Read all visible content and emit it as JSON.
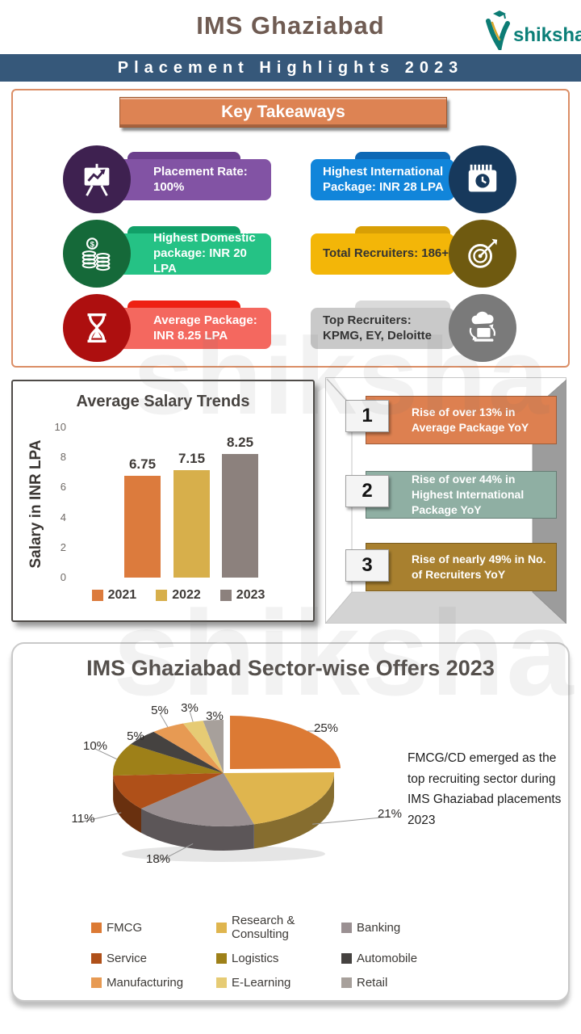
{
  "header": {
    "title": "IMS Ghaziabad",
    "brand": "shiksha",
    "banner": "Placement Highlights 2023"
  },
  "watermark": "shiksha",
  "key_takeaways": {
    "title": "Key Takeaways",
    "badges": [
      {
        "label": "Placement Rate: 100%",
        "icon": "presentation-chart-icon",
        "ribbon_color": "#8253A4",
        "tab_color": "#6B3F8C",
        "circle_color": "#3E2150",
        "text_color": "#FFFFFF"
      },
      {
        "label": "Highest International Package: INR 28 LPA",
        "icon": "calendar-clock-icon",
        "ribbon_color": "#1185DA",
        "tab_color": "#0D68B5",
        "circle_color": "#17395C",
        "text_color": "#FFFFFF"
      },
      {
        "label": "Highest Domestic package: INR 20 LPA",
        "icon": "coins-icon",
        "ribbon_color": "#25C285",
        "tab_color": "#11A068",
        "circle_color": "#156939",
        "text_color": "#FFFFFF"
      },
      {
        "label": "Total Recruiters: 186+",
        "icon": "target-icon",
        "ribbon_color": "#F3B608",
        "tab_color": "#D89F05",
        "circle_color": "#6F5A10",
        "text_color": "#333333"
      },
      {
        "label": "Average Package: INR 8.25 LPA",
        "icon": "hourglass-icon",
        "ribbon_color": "#F4685F",
        "tab_color": "#EE2113",
        "circle_color": "#AD0F0F",
        "text_color": "#FFFFFF"
      },
      {
        "label": "Top Recruiters: KPMG, EY, Deloitte",
        "icon": "cloud-sync-icon",
        "ribbon_color": "#C9C9C9",
        "tab_color": "#DADADA",
        "circle_color": "#7A7A7A",
        "text_color": "#333333"
      }
    ]
  },
  "insights": [
    {
      "number": "1",
      "text": "Rise of over 13% in Average Package YoY",
      "color": "#DD8050"
    },
    {
      "number": "2",
      "text": "Rise of over 44% in Highest International Package YoY",
      "color": "#8FAFA3"
    },
    {
      "number": "3",
      "text": "Rise of nearly 49% in No. of Recruiters YoY",
      "color": "#A8802F"
    }
  ],
  "chart_data": [
    {
      "type": "bar",
      "title": "Average Salary Trends",
      "xlabel": "",
      "ylabel": "Salary in INR LPA",
      "categories": [
        "2021",
        "2022",
        "2023"
      ],
      "values": [
        6.75,
        7.15,
        8.25
      ],
      "colors": [
        "#DC7B3D",
        "#D7AF4B",
        "#8C817D"
      ],
      "ylim": [
        0,
        10
      ],
      "yticks": [
        0,
        2,
        4,
        6,
        8,
        10
      ],
      "grid": false,
      "legend_position": "bottom"
    },
    {
      "type": "pie",
      "title": "IMS Ghaziabad Sector-wise Offers 2023",
      "labels": [
        "FMCG",
        "Research & Consulting",
        "Banking",
        "Service",
        "Logistics",
        "Automobile",
        "Manufacturing",
        "E-Learning",
        "Retail"
      ],
      "values": [
        25,
        21,
        18,
        11,
        10,
        5,
        5,
        3,
        3
      ],
      "unit": "%",
      "colors": [
        "#DC7A34",
        "#DFB54E",
        "#9A9092",
        "#AF5019",
        "#9E8018",
        "#454240",
        "#E79A53",
        "#E6CB74",
        "#A7A09B"
      ],
      "style": "3d-exploded-first-slice",
      "legend_position": "bottom",
      "annotation": "FMCG/CD emerged as the top recruiting sector during IMS Ghaziabad placements 2023"
    }
  ]
}
